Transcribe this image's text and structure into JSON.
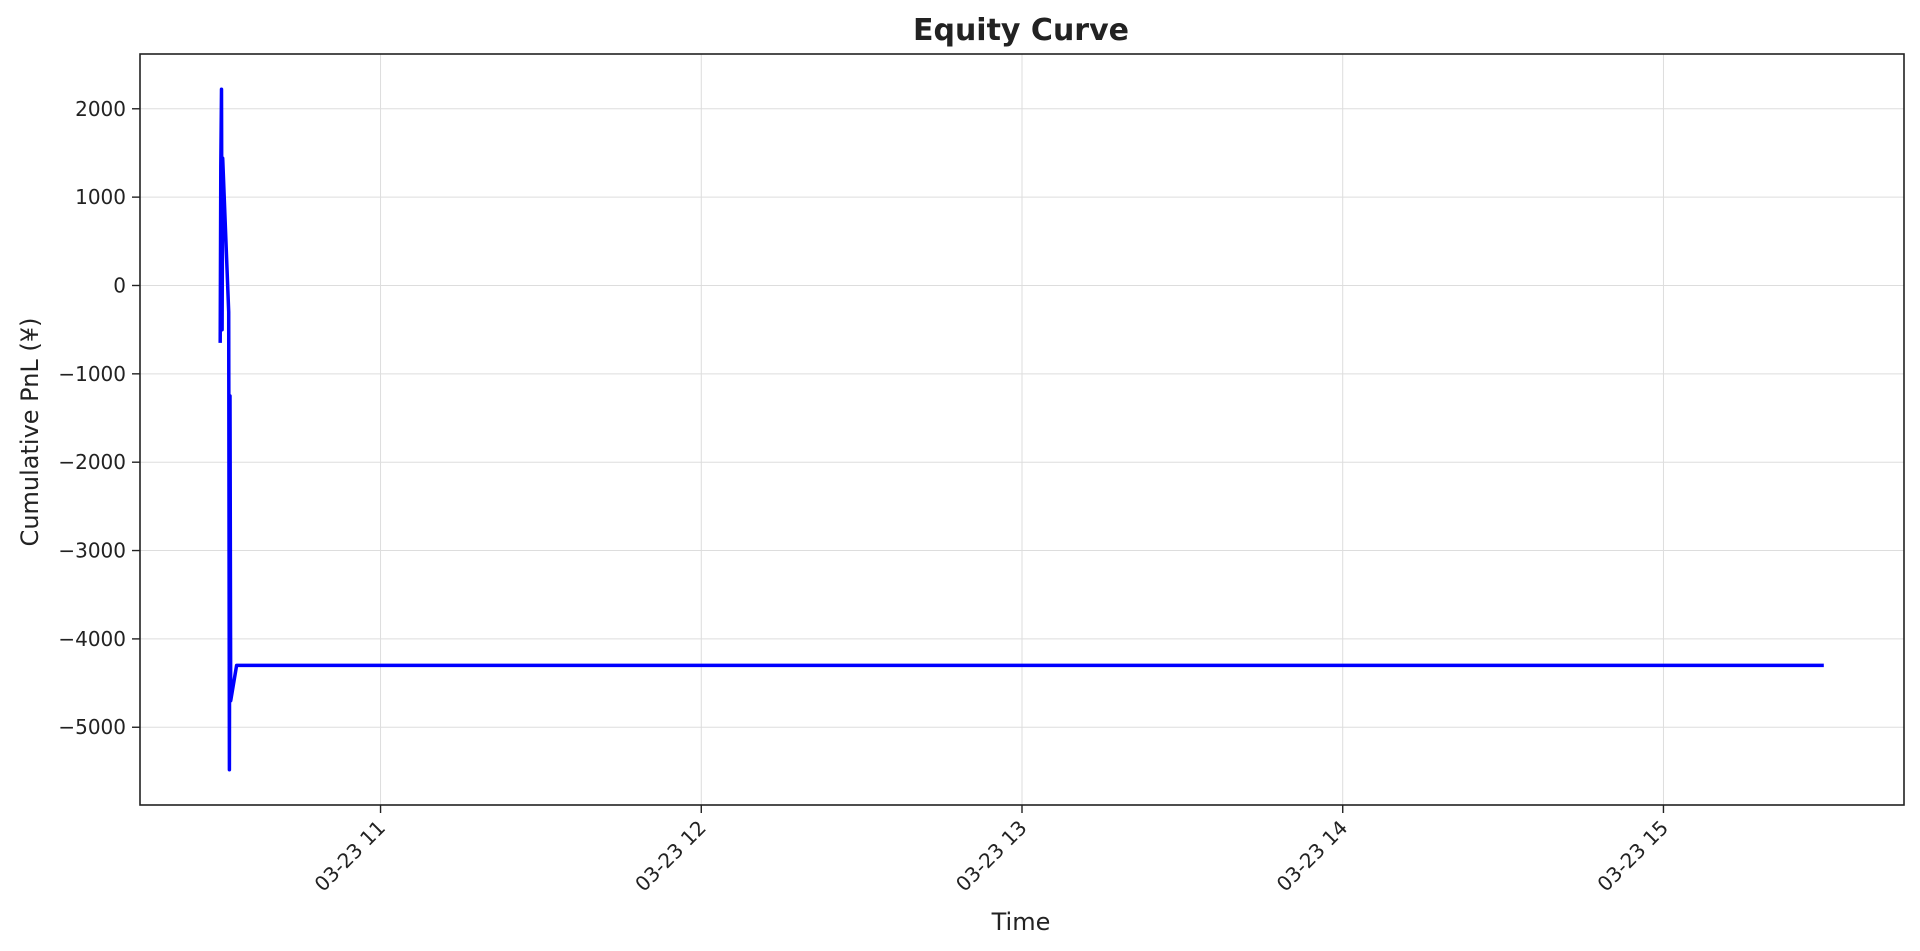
{
  "chart_data": {
    "type": "line",
    "title": "Equity Curve",
    "xlabel": "Time",
    "ylabel": "Cumulative PnL (¥)",
    "grid": true,
    "legend": "none",
    "x_tick_labels": [
      "03-23 11",
      "03-23 12",
      "03-23 13",
      "03-23 14",
      "03-23 15"
    ],
    "y_ticks": [
      2000,
      1000,
      0,
      -1000,
      -2000,
      -3000,
      -4000,
      -5000
    ],
    "y_tick_labels": [
      "2000",
      "1000",
      "0",
      "−1000",
      "−2000",
      "−3000",
      "−4000",
      "−5000"
    ],
    "ylim": [
      -5880,
      2620
    ],
    "xlim": [
      "03-23 10:15",
      "03-23 15:45"
    ],
    "series": [
      {
        "color": "#0000ff",
        "points": [
          [
            "03-23 10:30",
            -650
          ],
          [
            "03-23 10:30",
            1350
          ],
          [
            "03-23 10:30",
            2220
          ],
          [
            "03-23 10:30",
            -500
          ],
          [
            "03-23 10:30",
            1440
          ],
          [
            "03-23 10:31",
            -300
          ],
          [
            "03-23 10:31",
            -5480
          ],
          [
            "03-23 10:31",
            -1250
          ],
          [
            "03-23 10:31",
            -4700
          ],
          [
            "03-23 10:32",
            -4300
          ],
          [
            "03-23 15:30",
            -4300
          ]
        ]
      }
    ]
  }
}
